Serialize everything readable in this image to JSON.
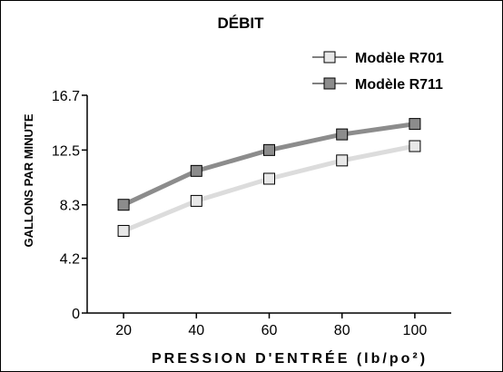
{
  "chart_data": {
    "type": "line",
    "title": "DÉBIT",
    "xlabel": "PRESSION D'ENTRÉE (lb/po²)",
    "ylabel": "GALLONS PAR MINUTE",
    "x": [
      20,
      40,
      60,
      80,
      100
    ],
    "xticks": [
      "20",
      "40",
      "60",
      "80",
      "100"
    ],
    "yticks": [
      0,
      4.2,
      8.3,
      12.5,
      16.7
    ],
    "ytick_labels": [
      "0",
      "4.2",
      "8.3",
      "12.5",
      "16.7"
    ],
    "xlim": [
      10,
      110
    ],
    "ylim": [
      0,
      16.7
    ],
    "grid": false,
    "legend_position": "top-right",
    "series": [
      {
        "name": "Modèle R701",
        "values": [
          6.3,
          8.6,
          10.3,
          11.7,
          12.8
        ],
        "color": "#dcdcdc",
        "marker_fill": "#e8e8e8"
      },
      {
        "name": "Modèle R711",
        "values": [
          8.3,
          10.9,
          12.5,
          13.7,
          14.5
        ],
        "color": "#8c8c8c",
        "marker_fill": "#8c8c8c"
      }
    ]
  }
}
